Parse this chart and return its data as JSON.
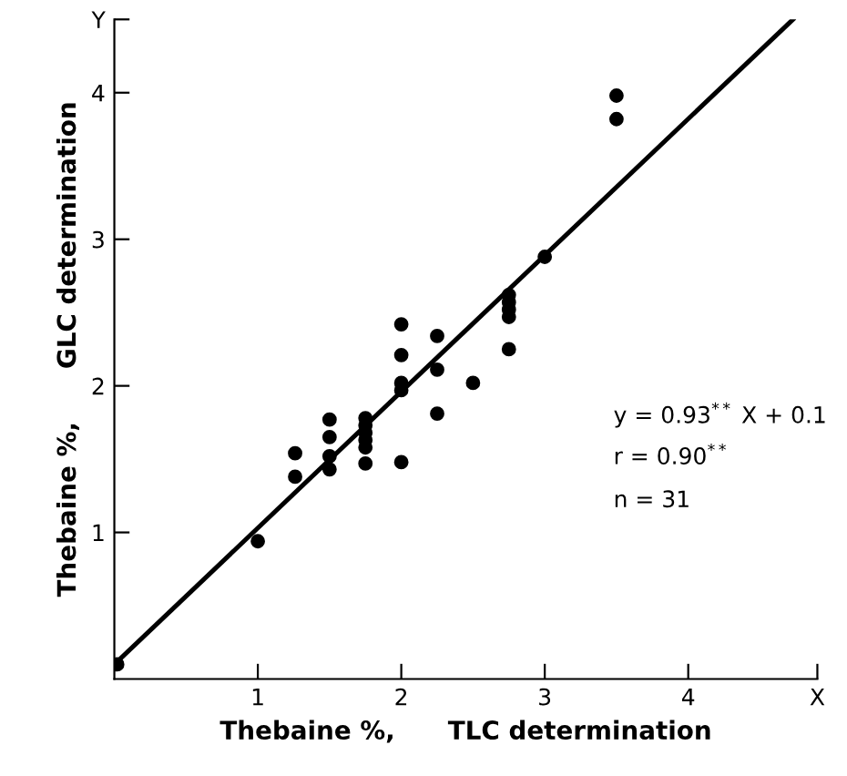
{
  "chart_data": {
    "type": "scatter",
    "xlabel": "Thebaine %,      TLC determination",
    "ylabel": "Thebaine %,      GLC determination",
    "xlim": [
      0,
      4.9
    ],
    "ylim": [
      0,
      4.5
    ],
    "xticks": [
      1,
      2,
      3,
      4,
      {
        "value": 4.9,
        "label": "X"
      }
    ],
    "yticks": [
      1,
      2,
      3,
      4,
      {
        "value": 4.5,
        "label": "Y"
      }
    ],
    "grid": false,
    "legend": false,
    "series": [
      {
        "color": "#000000",
        "marker": "circle",
        "x": [
          0.02,
          1.0,
          1.26,
          1.26,
          1.5,
          1.5,
          1.5,
          1.5,
          1.75,
          1.75,
          1.75,
          1.75,
          1.75,
          1.75,
          2.0,
          2.0,
          2.0,
          2.0,
          2.0,
          2.25,
          2.25,
          2.25,
          2.5,
          2.75,
          2.75,
          2.75,
          2.75,
          2.75,
          3.0,
          3.5,
          3.5
        ],
        "values": [
          0.1,
          0.94,
          1.54,
          1.38,
          1.77,
          1.65,
          1.52,
          1.43,
          1.78,
          1.73,
          1.68,
          1.63,
          1.58,
          1.47,
          2.42,
          2.21,
          2.02,
          1.97,
          1.48,
          2.34,
          2.11,
          1.81,
          2.02,
          2.62,
          2.57,
          2.52,
          2.47,
          2.25,
          2.88,
          3.98,
          3.82
        ]
      },
      {
        "type": "line",
        "color": "#000000",
        "marker": "none",
        "line_style": "solid",
        "x": [
          0,
          4.73
        ],
        "values": [
          0.1,
          4.5
        ]
      }
    ],
    "annotations": [
      "y = 0.93$^{**}$ X + 0.1",
      "r = 0.90$^{**}$",
      "n = 31"
    ]
  }
}
